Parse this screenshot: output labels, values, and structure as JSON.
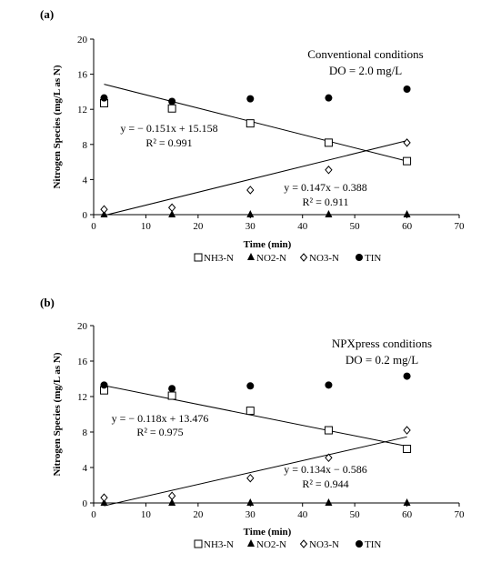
{
  "chart_data": [
    {
      "type": "scatter",
      "panel_label": "(a)",
      "condition_title": "Conventional conditions",
      "condition_subtitle": "DO = 2.0 mg/L",
      "xlabel": "Time (min)",
      "ylabel": "Nitrogen Species (mg/L as N)",
      "xlim": [
        0,
        70
      ],
      "ylim": [
        0,
        20
      ],
      "xticks": [
        0,
        10,
        20,
        30,
        40,
        50,
        60,
        70
      ],
      "yticks": [
        0,
        4,
        8,
        12,
        16,
        20
      ],
      "grid": false,
      "legend_position": "bottom",
      "series": [
        {
          "name": "NH3-N",
          "marker": "square-open",
          "x": [
            2,
            15,
            30,
            45,
            60
          ],
          "values": [
            12.7,
            12.1,
            10.4,
            8.2,
            6.1
          ]
        },
        {
          "name": "NO2-N",
          "marker": "triangle-filled",
          "x": [
            2,
            15,
            30,
            45,
            60
          ],
          "values": [
            0,
            0,
            0,
            0,
            0
          ]
        },
        {
          "name": "NO3-N",
          "marker": "diamond-open",
          "x": [
            2,
            15,
            30,
            45,
            60
          ],
          "values": [
            0.6,
            0.8,
            2.8,
            5.1,
            8.2
          ]
        },
        {
          "name": "TIN",
          "marker": "circle-filled",
          "x": [
            2,
            15,
            30,
            45,
            60
          ],
          "values": [
            13.3,
            12.9,
            13.2,
            13.3,
            14.3
          ]
        }
      ],
      "trendlines": [
        {
          "slope": -0.151,
          "intercept": 15.158,
          "x_range": [
            2,
            60
          ],
          "equation": "y = − 0.151x + 15.158",
          "r2": "R² = 0.991"
        },
        {
          "slope": 0.147,
          "intercept": -0.388,
          "x_range": [
            2,
            60
          ],
          "equation": "y = 0.147x − 0.388",
          "r2": "R² = 0.911"
        }
      ]
    },
    {
      "type": "scatter",
      "panel_label": "(b)",
      "condition_title": "NPXpress conditions",
      "condition_subtitle": "DO = 0.2 mg/L",
      "xlabel": "Time (min)",
      "ylabel": "Nitrogen Species (mg/L as N)",
      "xlim": [
        0,
        70
      ],
      "ylim": [
        0,
        20
      ],
      "xticks": [
        0,
        10,
        20,
        30,
        40,
        50,
        60,
        70
      ],
      "yticks": [
        0,
        4,
        8,
        12,
        16,
        20
      ],
      "grid": false,
      "legend_position": "bottom",
      "series": [
        {
          "name": "NH3-N",
          "marker": "square-open",
          "x": [
            2,
            15,
            30,
            45,
            60
          ],
          "values": [
            12.7,
            12.1,
            10.4,
            8.2,
            6.1
          ]
        },
        {
          "name": "NO2-N",
          "marker": "triangle-filled",
          "x": [
            2,
            15,
            30,
            45,
            60
          ],
          "values": [
            0,
            0,
            0,
            0,
            0
          ]
        },
        {
          "name": "NO3-N",
          "marker": "diamond-open",
          "x": [
            2,
            15,
            30,
            45,
            60
          ],
          "values": [
            0.6,
            0.8,
            2.8,
            5.1,
            8.2
          ]
        },
        {
          "name": "TIN",
          "marker": "circle-filled",
          "x": [
            2,
            15,
            30,
            45,
            60
          ],
          "values": [
            13.3,
            12.9,
            13.2,
            13.3,
            14.3
          ]
        }
      ],
      "trendlines": [
        {
          "slope": -0.118,
          "intercept": 13.476,
          "x_range": [
            2,
            60
          ],
          "equation": "y = − 0.118x + 13.476",
          "r2": "R² = 0.975"
        },
        {
          "slope": 0.134,
          "intercept": -0.586,
          "x_range": [
            2,
            60
          ],
          "equation": "y = 0.134x − 0.586",
          "r2": "R² = 0.944"
        }
      ]
    }
  ]
}
